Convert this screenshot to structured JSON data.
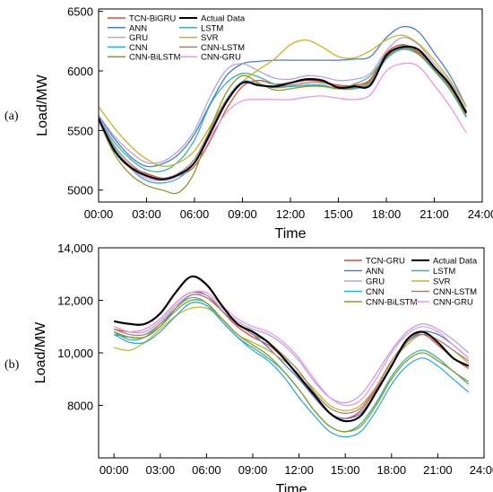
{
  "chart_data": [
    {
      "type": "line",
      "panel_label": "(a)",
      "xlabel": "Time",
      "ylabel": "Load/MW",
      "x_ticks": [
        "00:00",
        "03:00",
        "06:00",
        "09:00",
        "12:00",
        "15:00",
        "18:00",
        "21:00",
        "24:00"
      ],
      "y_ticks": [
        "5000",
        "5500",
        "6000",
        "6500"
      ],
      "xlim": [
        0,
        24
      ],
      "ylim": [
        4900,
        6520
      ],
      "x": [
        0,
        1,
        2,
        3,
        4,
        5,
        6,
        7,
        8,
        9,
        10,
        11,
        12,
        13,
        14,
        15,
        16,
        17,
        18,
        19,
        20,
        21,
        22,
        23
      ],
      "legend_position": "top-left",
      "series": [
        {
          "name": "TCN-BiGRU",
          "color": "#e04a3c",
          "values": [
            5600,
            5350,
            5200,
            5140,
            5100,
            5120,
            5200,
            5420,
            5680,
            5870,
            5920,
            5890,
            5900,
            5920,
            5910,
            5880,
            5880,
            5930,
            6150,
            6220,
            6160,
            6020,
            5860,
            5640
          ]
        },
        {
          "name": "Actual Data",
          "color": "#000000",
          "values": [
            5600,
            5330,
            5190,
            5120,
            5090,
            5130,
            5230,
            5480,
            5740,
            5900,
            5880,
            5870,
            5900,
            5930,
            5920,
            5860,
            5870,
            5880,
            6130,
            6200,
            6180,
            6030,
            5880,
            5650
          ]
        },
        {
          "name": "ANN",
          "color": "#4a7fd4",
          "values": [
            5620,
            5430,
            5280,
            5200,
            5220,
            5300,
            5470,
            5730,
            5960,
            6060,
            6080,
            6090,
            6090,
            6090,
            6090,
            6090,
            6100,
            6120,
            6280,
            6370,
            6330,
            6150,
            5960,
            5700
          ]
        },
        {
          "name": "LSTM",
          "color": "#3bb3a7",
          "values": [
            5600,
            5400,
            5260,
            5170,
            5160,
            5240,
            5420,
            5720,
            5900,
            5980,
            5950,
            5890,
            5870,
            5880,
            5880,
            5850,
            5890,
            5960,
            6130,
            6210,
            6150,
            6020,
            5860,
            5620
          ]
        },
        {
          "name": "GRU",
          "color": "#b8a3dc",
          "values": [
            5630,
            5450,
            5320,
            5230,
            5240,
            5330,
            5500,
            5790,
            6010,
            6060,
            6000,
            5940,
            5930,
            5960,
            5950,
            5920,
            5930,
            5980,
            6170,
            6280,
            6220,
            6060,
            5900,
            5670
          ]
        },
        {
          "name": "SVR",
          "color": "#c7b52a",
          "values": [
            5700,
            5520,
            5370,
            5260,
            5200,
            5230,
            5330,
            5540,
            5760,
            5910,
            6010,
            6100,
            6220,
            6260,
            6200,
            6120,
            6110,
            6170,
            6260,
            6300,
            6230,
            6090,
            5920,
            5700
          ]
        },
        {
          "name": "CNN",
          "color": "#2eaee0",
          "values": [
            5590,
            5350,
            5180,
            5080,
            5060,
            5100,
            5230,
            5490,
            5760,
            5910,
            5890,
            5860,
            5870,
            5880,
            5880,
            5850,
            5850,
            5900,
            6100,
            6180,
            6140,
            6000,
            5840,
            5610
          ]
        },
        {
          "name": "CNN-LSTM",
          "color": "#a0867c",
          "values": [
            5600,
            5370,
            5220,
            5130,
            5100,
            5140,
            5260,
            5510,
            5760,
            5900,
            5880,
            5860,
            5880,
            5900,
            5900,
            5870,
            5870,
            5910,
            6110,
            6190,
            6150,
            6020,
            5860,
            5620
          ]
        },
        {
          "name": "CNN-BiLSTM",
          "color": "#8e9a2a",
          "values": [
            5580,
            5300,
            5130,
            5040,
            5000,
            4980,
            5150,
            5520,
            5820,
            5960,
            5900,
            5840,
            5850,
            5870,
            5870,
            5850,
            5860,
            5920,
            6120,
            6200,
            6140,
            6010,
            5850,
            5620
          ]
        },
        {
          "name": "CNN-GRU",
          "color": "#e69ae6",
          "values": [
            5570,
            5330,
            5180,
            5100,
            5080,
            5120,
            5230,
            5450,
            5650,
            5750,
            5760,
            5760,
            5760,
            5780,
            5790,
            5770,
            5760,
            5800,
            6000,
            6060,
            6040,
            5880,
            5700,
            5480
          ]
        }
      ]
    },
    {
      "type": "line",
      "panel_label": "(b)",
      "xlabel": "Time",
      "ylabel": "Load/MW",
      "x_ticks": [
        "00:00",
        "03:00",
        "06:00",
        "09:00",
        "12:00",
        "15:00",
        "18:00",
        "21:00",
        "24:00"
      ],
      "y_ticks": [
        "8000",
        "10,000",
        "12,000",
        "14,000"
      ],
      "xlim": [
        -1,
        24
      ],
      "ylim": [
        6000,
        14000
      ],
      "x": [
        0,
        1,
        2,
        3,
        4,
        5,
        6,
        7,
        8,
        9,
        10,
        11,
        12,
        13,
        14,
        15,
        16,
        17,
        18,
        19,
        20,
        21,
        22,
        23
      ],
      "legend_position": "top-right",
      "series": [
        {
          "name": "TCN-GRU",
          "color": "#e04a3c",
          "values": [
            10900,
            10800,
            10900,
            11300,
            11900,
            12300,
            12200,
            11600,
            11000,
            10600,
            10300,
            9800,
            9100,
            8300,
            7700,
            7500,
            7800,
            8600,
            9500,
            10400,
            10700,
            10300,
            9800,
            9400
          ]
        },
        {
          "name": "Actual Data",
          "color": "#000000",
          "values": [
            11200,
            11100,
            11100,
            11500,
            12300,
            12900,
            12600,
            11800,
            11100,
            10800,
            10400,
            9800,
            9100,
            8400,
            7700,
            7400,
            7600,
            8500,
            9500,
            10500,
            10800,
            10400,
            9800,
            9500
          ]
        },
        {
          "name": "ANN",
          "color": "#4a7fd4",
          "values": [
            10700,
            10600,
            10600,
            11000,
            11700,
            12200,
            12100,
            11600,
            11100,
            10700,
            10200,
            9600,
            9000,
            8300,
            7700,
            7500,
            7700,
            8500,
            9500,
            10400,
            10800,
            10700,
            10300,
            9800
          ]
        },
        {
          "name": "LSTM",
          "color": "#3bb3a7",
          "values": [
            10800,
            10500,
            10600,
            11100,
            11700,
            12100,
            11900,
            11200,
            10600,
            10200,
            9800,
            9300,
            8600,
            7800,
            7200,
            7000,
            7300,
            8100,
            9100,
            9800,
            10100,
            9800,
            9300,
            8900
          ]
        },
        {
          "name": "GRU",
          "color": "#b8a3dc",
          "values": [
            11000,
            10800,
            10800,
            11200,
            11800,
            12200,
            12200,
            11700,
            11200,
            10900,
            10700,
            10300,
            9700,
            8900,
            8300,
            8100,
            8400,
            9200,
            10100,
            10800,
            11100,
            10900,
            10500,
            10000
          ]
        },
        {
          "name": "SVR",
          "color": "#c7b52a",
          "values": [
            10200,
            10100,
            10400,
            10900,
            11400,
            11700,
            11700,
            11300,
            10700,
            10400,
            10100,
            9700,
            9200,
            8600,
            8000,
            7800,
            8000,
            8700,
            9600,
            10300,
            10700,
            10500,
            10100,
            9600
          ]
        },
        {
          "name": "CNN",
          "color": "#2eaee0",
          "values": [
            10700,
            10400,
            10400,
            10800,
            11400,
            11900,
            11800,
            11200,
            10600,
            10100,
            9700,
            9100,
            8300,
            7600,
            7000,
            6800,
            7000,
            7800,
            8800,
            9500,
            9800,
            9500,
            9000,
            8500
          ]
        },
        {
          "name": "CNN-LSTM",
          "color": "#a0867c",
          "values": [
            10900,
            10700,
            10700,
            11100,
            11700,
            12200,
            12100,
            11600,
            11100,
            10700,
            10400,
            9900,
            9300,
            8500,
            7900,
            7700,
            7900,
            8700,
            9700,
            10400,
            10700,
            10500,
            10100,
            9700
          ]
        },
        {
          "name": "CNN-BiLSTM",
          "color": "#8e9a2a",
          "values": [
            10800,
            10600,
            10600,
            11000,
            11600,
            12000,
            11900,
            11300,
            10700,
            10300,
            9900,
            9300,
            8600,
            7800,
            7200,
            7000,
            7200,
            8000,
            9000,
            9700,
            10000,
            9700,
            9300,
            8800
          ]
        },
        {
          "name": "CNN-GRU",
          "color": "#e69ae6",
          "values": [
            11000,
            10800,
            10900,
            11300,
            11900,
            12300,
            12300,
            11800,
            11300,
            11000,
            10800,
            10400,
            9800,
            9000,
            8300,
            8000,
            8200,
            9000,
            10000,
            10700,
            11000,
            10800,
            10300,
            9800
          ]
        }
      ]
    }
  ]
}
